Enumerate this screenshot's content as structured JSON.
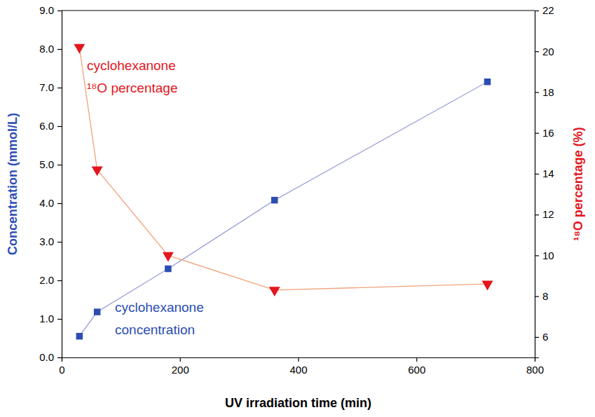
{
  "chart_data": {
    "type": "line",
    "x_label": "UV irradiation time (min)",
    "y_label": "Concentration (mmol/L)",
    "y2_label": "¹⁸O percentage (%)",
    "x": [
      30,
      60,
      180,
      360,
      720
    ],
    "xlim": [
      0,
      800
    ],
    "xticks": [
      0,
      200,
      400,
      600,
      800
    ],
    "ylim": [
      0,
      9
    ],
    "yticks": [
      {
        "value": 0,
        "label": "0.0"
      },
      {
        "value": 1,
        "label": "1.0"
      },
      {
        "value": 2,
        "label": "2.0"
      },
      {
        "value": 3,
        "label": "3.0"
      },
      {
        "value": 4,
        "label": "4.0"
      },
      {
        "value": 5,
        "label": "5.0"
      },
      {
        "value": 6,
        "label": "6.0"
      },
      {
        "value": 7,
        "label": "7.0"
      },
      {
        "value": 8,
        "label": "8.0"
      },
      {
        "value": 9,
        "label": "9.0"
      }
    ],
    "y2lim": [
      5,
      22
    ],
    "y2ticks": [
      6,
      8,
      10,
      12,
      14,
      16,
      18,
      20,
      22
    ],
    "grid": false,
    "series": [
      {
        "name": "cyclohexanone concentration",
        "annotation": [
          "cyclohexanone",
          "concentration"
        ],
        "color": "#2b4db3",
        "marker": "square",
        "line_style": "solid",
        "values": [
          0.55,
          1.18,
          2.3,
          4.08,
          7.15
        ]
      },
      {
        "name": "cyclohexanone ¹⁸O percentage",
        "annotation": [
          "cyclohexanone",
          "¹⁸O  percentage"
        ],
        "color": "#e3161c",
        "marker": "triangle-down",
        "line_style": "solid",
        "axis": "y2",
        "values": [
          20.2,
          14.2,
          10.0,
          8.3,
          8.6
        ]
      }
    ]
  }
}
